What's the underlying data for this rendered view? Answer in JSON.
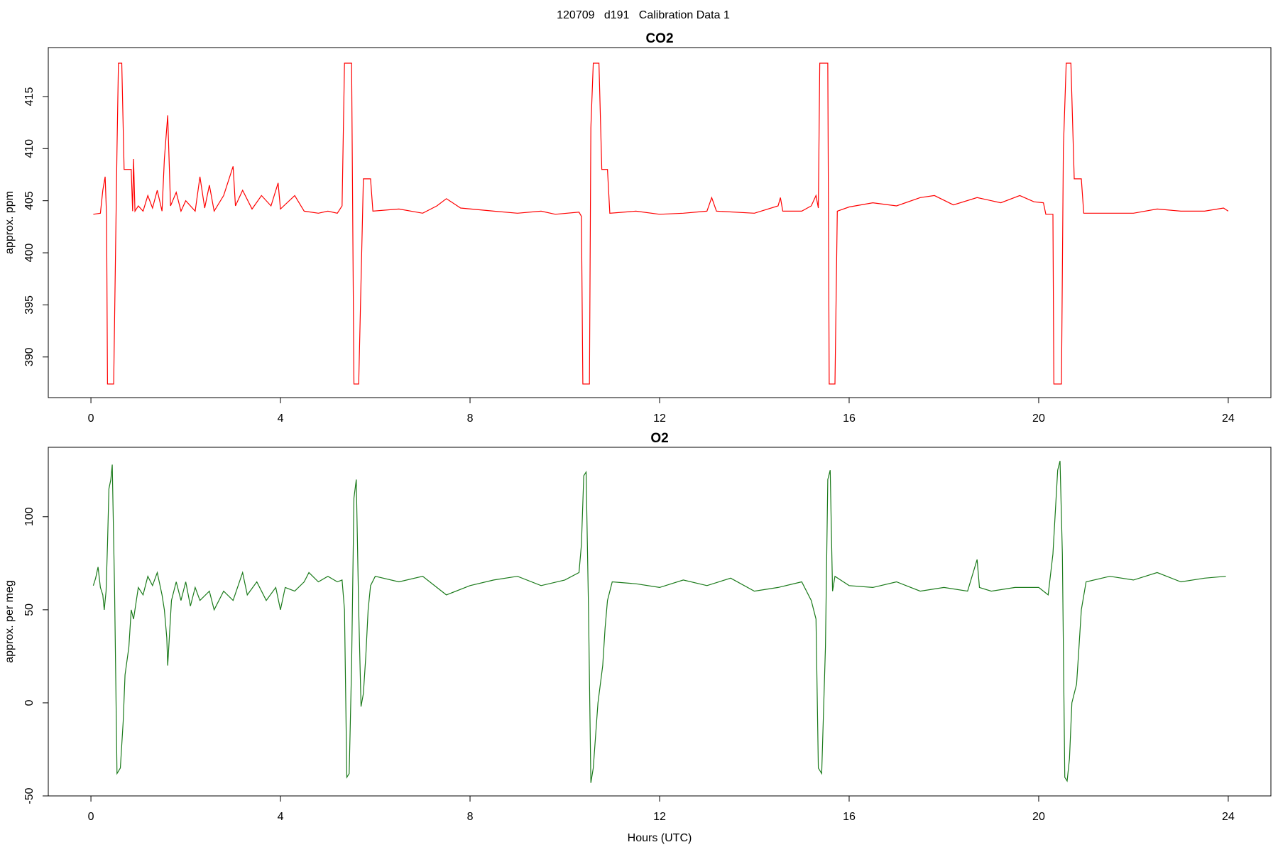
{
  "title": "120709   d191   Calibration Data 1",
  "chart_data": [
    {
      "type": "line",
      "title": "CO2",
      "ylabel": "approx. ppm",
      "color": "#ff0000",
      "xlim": [
        -0.9,
        24.9
      ],
      "xticks": [
        0,
        4,
        8,
        12,
        16,
        20,
        24
      ],
      "ylim": [
        386.1,
        419.7
      ],
      "yticks": [
        390,
        395,
        400,
        405,
        410,
        415
      ],
      "x": [
        0.05,
        0.2,
        0.25,
        0.3,
        0.33,
        0.35,
        0.48,
        0.55,
        0.58,
        0.65,
        0.7,
        0.85,
        0.88,
        0.9,
        0.93,
        1.0,
        1.1,
        1.2,
        1.3,
        1.4,
        1.5,
        1.55,
        1.62,
        1.68,
        1.8,
        1.9,
        2.0,
        2.2,
        2.3,
        2.4,
        2.5,
        2.6,
        2.8,
        3.0,
        3.05,
        3.2,
        3.4,
        3.6,
        3.8,
        3.95,
        4.0,
        4.3,
        4.5,
        4.8,
        5.0,
        5.2,
        5.3,
        5.35,
        5.5,
        5.55,
        5.65,
        5.75,
        5.9,
        5.95,
        6.5,
        7.0,
        7.3,
        7.5,
        7.8,
        8.5,
        9.0,
        9.5,
        9.8,
        10.3,
        10.35,
        10.38,
        10.52,
        10.55,
        10.6,
        10.72,
        10.78,
        10.9,
        10.95,
        11.5,
        12.0,
        12.5,
        13.0,
        13.1,
        13.2,
        14.0,
        14.5,
        14.55,
        14.6,
        15.0,
        15.2,
        15.3,
        15.35,
        15.38,
        15.55,
        15.58,
        15.7,
        15.75,
        16.0,
        16.5,
        17.0,
        17.5,
        17.8,
        18.2,
        18.7,
        19.2,
        19.6,
        19.9,
        20.1,
        20.15,
        20.3,
        20.32,
        20.48,
        20.52,
        20.58,
        20.68,
        20.75,
        20.9,
        20.95,
        21.5,
        22.0,
        22.5,
        23.0,
        23.5,
        23.9,
        24.0
      ],
      "values": [
        403.7,
        403.8,
        406,
        407.3,
        403.5,
        387.4,
        387.4,
        410,
        418.2,
        418.2,
        408,
        408,
        404,
        409,
        404,
        404.5,
        404,
        405.5,
        404.3,
        406,
        404,
        409,
        413.2,
        404.5,
        405.8,
        404,
        405,
        404,
        407.3,
        404.3,
        406.5,
        404,
        405.5,
        408.3,
        404.5,
        406,
        404.2,
        405.5,
        404.5,
        406.7,
        404.2,
        405.5,
        404,
        403.8,
        404,
        403.8,
        404.5,
        418.2,
        418.2,
        387.4,
        387.4,
        407.1,
        407.1,
        404,
        404.2,
        403.8,
        404.5,
        405.2,
        404.3,
        404,
        403.8,
        404,
        403.7,
        403.9,
        403.5,
        387.4,
        387.4,
        412,
        418.2,
        418.2,
        408,
        408,
        403.8,
        404,
        403.7,
        403.8,
        404,
        405.3,
        404,
        403.8,
        404.5,
        405.3,
        404,
        404,
        404.5,
        405.5,
        404.3,
        418.2,
        418.2,
        387.4,
        387.4,
        404,
        404.4,
        404.8,
        404.5,
        405.3,
        405.5,
        404.6,
        405.3,
        404.8,
        405.5,
        404.9,
        404.8,
        403.7,
        403.7,
        387.4,
        387.4,
        410,
        418.2,
        418.2,
        407.1,
        407.1,
        403.8,
        403.8,
        403.8,
        404.2,
        404,
        404,
        404.3,
        404
      ]
    },
    {
      "type": "line",
      "title": "O2",
      "ylabel": "approx. per meg",
      "xlabel": "Hours (UTC)",
      "color": "#1a7a1a",
      "xlim": [
        -0.9,
        24.9
      ],
      "xticks": [
        0,
        4,
        8,
        12,
        16,
        20,
        24
      ],
      "ylim": [
        -50,
        137.3
      ],
      "yticks": [
        -50,
        0,
        50,
        100
      ],
      "x": [
        0.05,
        0.1,
        0.15,
        0.2,
        0.25,
        0.28,
        0.32,
        0.35,
        0.38,
        0.42,
        0.45,
        0.5,
        0.55,
        0.62,
        0.68,
        0.72,
        0.8,
        0.85,
        0.9,
        1.0,
        1.1,
        1.2,
        1.3,
        1.4,
        1.5,
        1.55,
        1.6,
        1.62,
        1.7,
        1.8,
        1.9,
        2.0,
        2.1,
        2.2,
        2.3,
        2.5,
        2.6,
        2.8,
        3.0,
        3.2,
        3.3,
        3.5,
        3.7,
        3.9,
        4.0,
        4.1,
        4.3,
        4.5,
        4.6,
        4.8,
        5.0,
        5.2,
        5.3,
        5.35,
        5.4,
        5.45,
        5.5,
        5.55,
        5.6,
        5.65,
        5.7,
        5.75,
        5.8,
        5.85,
        5.9,
        6.0,
        6.5,
        7.0,
        7.3,
        7.5,
        8.0,
        8.5,
        9.0,
        9.5,
        10.0,
        10.3,
        10.35,
        10.4,
        10.45,
        10.5,
        10.55,
        10.6,
        10.7,
        10.8,
        10.85,
        10.9,
        11.0,
        11.5,
        12.0,
        12.5,
        13.0,
        13.5,
        14.0,
        14.5,
        15.0,
        15.2,
        15.3,
        15.35,
        15.42,
        15.5,
        15.55,
        15.6,
        15.65,
        15.7,
        16.0,
        16.5,
        17.0,
        17.5,
        18.0,
        18.5,
        18.7,
        18.75,
        19.0,
        19.5,
        20.0,
        20.2,
        20.3,
        20.4,
        20.45,
        20.5,
        20.55,
        20.6,
        20.65,
        20.7,
        20.8,
        20.85,
        20.9,
        21.0,
        21.5,
        22.0,
        22.5,
        23.0,
        23.5,
        23.95
      ],
      "values": [
        63,
        67,
        73,
        62,
        58,
        50,
        60,
        85,
        115,
        120,
        128,
        60,
        -38,
        -35,
        -10,
        15,
        30,
        50,
        45,
        62,
        58,
        68,
        63,
        70,
        58,
        50,
        35,
        20,
        55,
        65,
        55,
        65,
        52,
        62,
        55,
        60,
        50,
        60,
        55,
        70,
        58,
        65,
        55,
        62,
        50,
        62,
        60,
        65,
        70,
        65,
        68,
        65,
        66,
        50,
        -40,
        -38,
        20,
        110,
        120,
        50,
        -2,
        5,
        25,
        50,
        63,
        68,
        65,
        68,
        62,
        58,
        63,
        66,
        68,
        63,
        66,
        70,
        85,
        122,
        124,
        50,
        -43,
        -35,
        0,
        20,
        40,
        55,
        65,
        64,
        62,
        66,
        63,
        67,
        60,
        62,
        65,
        55,
        45,
        -35,
        -38,
        30,
        120,
        125,
        60,
        68,
        63,
        62,
        65,
        60,
        62,
        60,
        77,
        62,
        60,
        62,
        62,
        58,
        80,
        125,
        130,
        80,
        -40,
        -42,
        -30,
        0,
        10,
        30,
        50,
        65,
        68,
        66,
        70,
        65,
        67,
        68
      ]
    }
  ]
}
